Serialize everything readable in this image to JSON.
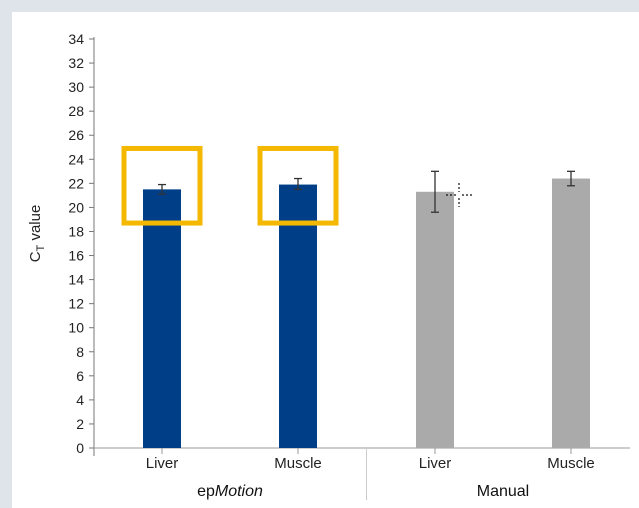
{
  "chart_data": {
    "type": "bar",
    "ylabel_main": "C",
    "ylabel_sub": "T",
    "ylabel_rest": " value",
    "ylim": [
      0,
      34
    ],
    "yticks": [
      0,
      2,
      4,
      6,
      8,
      10,
      12,
      14,
      16,
      18,
      20,
      22,
      24,
      26,
      28,
      30,
      32,
      34
    ],
    "groups": [
      {
        "label_prefix": "ep",
        "label_italic": "Motion",
        "color": "#003f87",
        "bars": [
          {
            "category": "Liver",
            "value": 21.5,
            "err_low": 21.1,
            "err_high": 21.9,
            "highlighted": true
          },
          {
            "category": "Muscle",
            "value": 21.9,
            "err_low": 21.5,
            "err_high": 22.4,
            "highlighted": true
          }
        ]
      },
      {
        "label": "Manual",
        "color": "#aaaaaa",
        "bars": [
          {
            "category": "Liver",
            "value": 21.3,
            "err_low": 19.6,
            "err_high": 23.0,
            "highlighted": false
          },
          {
            "category": "Muscle",
            "value": 22.4,
            "err_low": 21.8,
            "err_high": 23.0,
            "highlighted": false
          }
        ]
      }
    ],
    "highlight_color": "#f5b800",
    "grid": false
  }
}
